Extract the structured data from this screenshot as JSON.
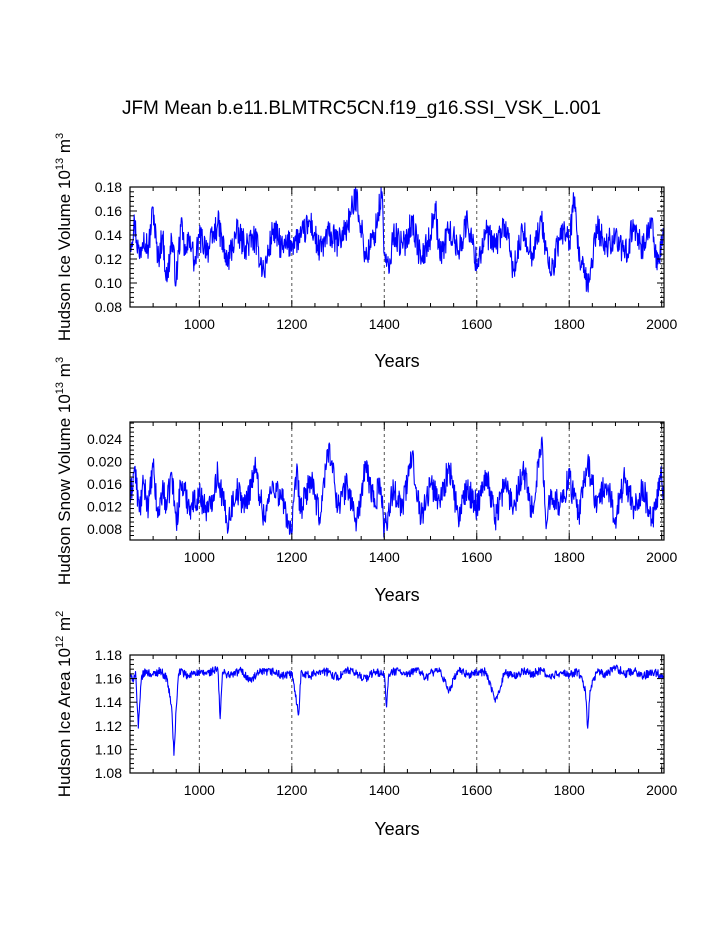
{
  "title": "JFM Mean b.e11.BLMTRC5CN.f19_g16.SSI_VSK_L.001",
  "colors": {
    "series": "#0000ff",
    "axis": "#000000",
    "grid": "#555555"
  },
  "chart_data": [
    {
      "type": "line",
      "title": "",
      "xlabel": "Years",
      "ylabel": {
        "name": "Hudson Ice Volume",
        "base": "10",
        "exp": "13",
        "unit": "m",
        "unit_exp": "3"
      },
      "xlim": [
        850,
        2005
      ],
      "ylim": [
        0.08,
        0.18
      ],
      "xticks": [
        1000,
        1200,
        1400,
        1600,
        1800,
        2000
      ],
      "yticks": [
        "0.08",
        "0.10",
        "0.12",
        "0.14",
        "0.16",
        "0.18"
      ],
      "grid": "vertical dashed at major x ticks",
      "series": [
        {
          "x": [
            850,
            860,
            870,
            880,
            890,
            900,
            910,
            920,
            930,
            940,
            950,
            960,
            970,
            980,
            990,
            1000,
            1020,
            1040,
            1060,
            1080,
            1100,
            1120,
            1140,
            1160,
            1180,
            1200,
            1220,
            1240,
            1260,
            1280,
            1300,
            1320,
            1340,
            1360,
            1380,
            1395,
            1400,
            1410,
            1420,
            1440,
            1460,
            1480,
            1500,
            1510,
            1520,
            1540,
            1560,
            1580,
            1600,
            1620,
            1640,
            1660,
            1680,
            1700,
            1720,
            1740,
            1760,
            1780,
            1790,
            1800,
            1810,
            1820,
            1840,
            1860,
            1880,
            1900,
            1920,
            1940,
            1960,
            1980,
            1990,
            2000,
            2005
          ],
          "values": [
            0.133,
            0.15,
            0.122,
            0.142,
            0.128,
            0.163,
            0.118,
            0.14,
            0.101,
            0.138,
            0.102,
            0.147,
            0.124,
            0.139,
            0.115,
            0.138,
            0.128,
            0.15,
            0.116,
            0.142,
            0.131,
            0.137,
            0.109,
            0.145,
            0.128,
            0.134,
            0.138,
            0.151,
            0.126,
            0.141,
            0.133,
            0.148,
            0.173,
            0.12,
            0.142,
            0.176,
            0.124,
            0.108,
            0.143,
            0.129,
            0.152,
            0.118,
            0.14,
            0.166,
            0.121,
            0.145,
            0.127,
            0.152,
            0.116,
            0.141,
            0.13,
            0.149,
            0.11,
            0.143,
            0.125,
            0.151,
            0.106,
            0.138,
            0.146,
            0.132,
            0.169,
            0.125,
            0.095,
            0.147,
            0.13,
            0.141,
            0.121,
            0.149,
            0.128,
            0.154,
            0.111,
            0.133,
            0.14
          ]
        }
      ]
    },
    {
      "type": "line",
      "title": "",
      "xlabel": "Years",
      "ylabel": {
        "name": "Hudson Snow Volume",
        "base": "10",
        "exp": "13",
        "unit": "m",
        "unit_exp": "3"
      },
      "xlim": [
        850,
        2005
      ],
      "ylim": [
        0.006,
        0.027
      ],
      "xticks": [
        1000,
        1200,
        1400,
        1600,
        1800,
        2000
      ],
      "yticks": [
        "0.008",
        "0.012",
        "0.016",
        "0.020",
        "0.024"
      ],
      "grid": "vertical dashed at major x ticks",
      "series": [
        {
          "x": [
            850,
            860,
            870,
            880,
            890,
            900,
            910,
            920,
            930,
            940,
            950,
            960,
            980,
            1000,
            1020,
            1040,
            1060,
            1080,
            1100,
            1120,
            1140,
            1160,
            1180,
            1200,
            1210,
            1220,
            1240,
            1260,
            1280,
            1300,
            1320,
            1340,
            1360,
            1380,
            1390,
            1400,
            1420,
            1440,
            1460,
            1480,
            1500,
            1520,
            1540,
            1560,
            1580,
            1600,
            1620,
            1640,
            1660,
            1680,
            1700,
            1720,
            1740,
            1750,
            1760,
            1780,
            1800,
            1820,
            1840,
            1860,
            1880,
            1900,
            1920,
            1940,
            1960,
            1980,
            2000,
            2005
          ],
          "values": [
            0.013,
            0.019,
            0.011,
            0.016,
            0.012,
            0.019,
            0.01,
            0.015,
            0.012,
            0.018,
            0.009,
            0.016,
            0.012,
            0.014,
            0.011,
            0.018,
            0.009,
            0.015,
            0.012,
            0.019,
            0.01,
            0.016,
            0.013,
            0.007,
            0.018,
            0.011,
            0.017,
            0.01,
            0.023,
            0.012,
            0.016,
            0.009,
            0.019,
            0.012,
            0.017,
            0.008,
            0.015,
            0.012,
            0.021,
            0.01,
            0.016,
            0.013,
            0.019,
            0.01,
            0.015,
            0.012,
            0.018,
            0.01,
            0.016,
            0.012,
            0.019,
            0.011,
            0.024,
            0.008,
            0.015,
            0.012,
            0.017,
            0.01,
            0.02,
            0.012,
            0.016,
            0.01,
            0.017,
            0.012,
            0.015,
            0.009,
            0.017,
            0.013
          ]
        }
      ]
    },
    {
      "type": "line",
      "title": "",
      "xlabel": "Years",
      "ylabel": {
        "name": "Hudson Ice Area",
        "base": "10",
        "exp": "12",
        "unit": "m",
        "unit_exp": "2"
      },
      "xlim": [
        850,
        2005
      ],
      "ylim": [
        1.08,
        1.18
      ],
      "xticks": [
        1000,
        1200,
        1400,
        1600,
        1800,
        2000
      ],
      "yticks": [
        "1.08",
        "1.10",
        "1.12",
        "1.14",
        "1.16",
        "1.18"
      ],
      "grid": "vertical dashed at major x ticks",
      "series": [
        {
          "x": [
            850,
            855,
            862,
            868,
            875,
            885,
            900,
            915,
            930,
            940,
            945,
            950,
            955,
            960,
            975,
            990,
            1000,
            1020,
            1040,
            1045,
            1050,
            1070,
            1090,
            1110,
            1130,
            1160,
            1180,
            1200,
            1215,
            1220,
            1240,
            1260,
            1280,
            1300,
            1320,
            1340,
            1360,
            1380,
            1400,
            1405,
            1410,
            1430,
            1450,
            1470,
            1490,
            1500,
            1520,
            1540,
            1560,
            1580,
            1600,
            1620,
            1640,
            1660,
            1680,
            1700,
            1720,
            1740,
            1760,
            1780,
            1800,
            1820,
            1835,
            1840,
            1845,
            1860,
            1880,
            1900,
            1920,
            1940,
            1960,
            1980,
            2000,
            2005
          ],
          "values": [
            1.164,
            1.158,
            1.166,
            1.118,
            1.162,
            1.166,
            1.163,
            1.167,
            1.16,
            1.136,
            1.095,
            1.135,
            1.164,
            1.167,
            1.161,
            1.166,
            1.164,
            1.165,
            1.168,
            1.126,
            1.165,
            1.163,
            1.167,
            1.158,
            1.165,
            1.166,
            1.162,
            1.164,
            1.13,
            1.166,
            1.162,
            1.167,
            1.165,
            1.161,
            1.167,
            1.164,
            1.16,
            1.166,
            1.163,
            1.136,
            1.164,
            1.167,
            1.162,
            1.169,
            1.16,
            1.165,
            1.166,
            1.15,
            1.167,
            1.163,
            1.165,
            1.166,
            1.14,
            1.165,
            1.162,
            1.166,
            1.164,
            1.167,
            1.161,
            1.165,
            1.163,
            1.166,
            1.15,
            1.118,
            1.15,
            1.166,
            1.163,
            1.17,
            1.164,
            1.167,
            1.162,
            1.166,
            1.163,
            1.161
          ]
        }
      ]
    }
  ]
}
